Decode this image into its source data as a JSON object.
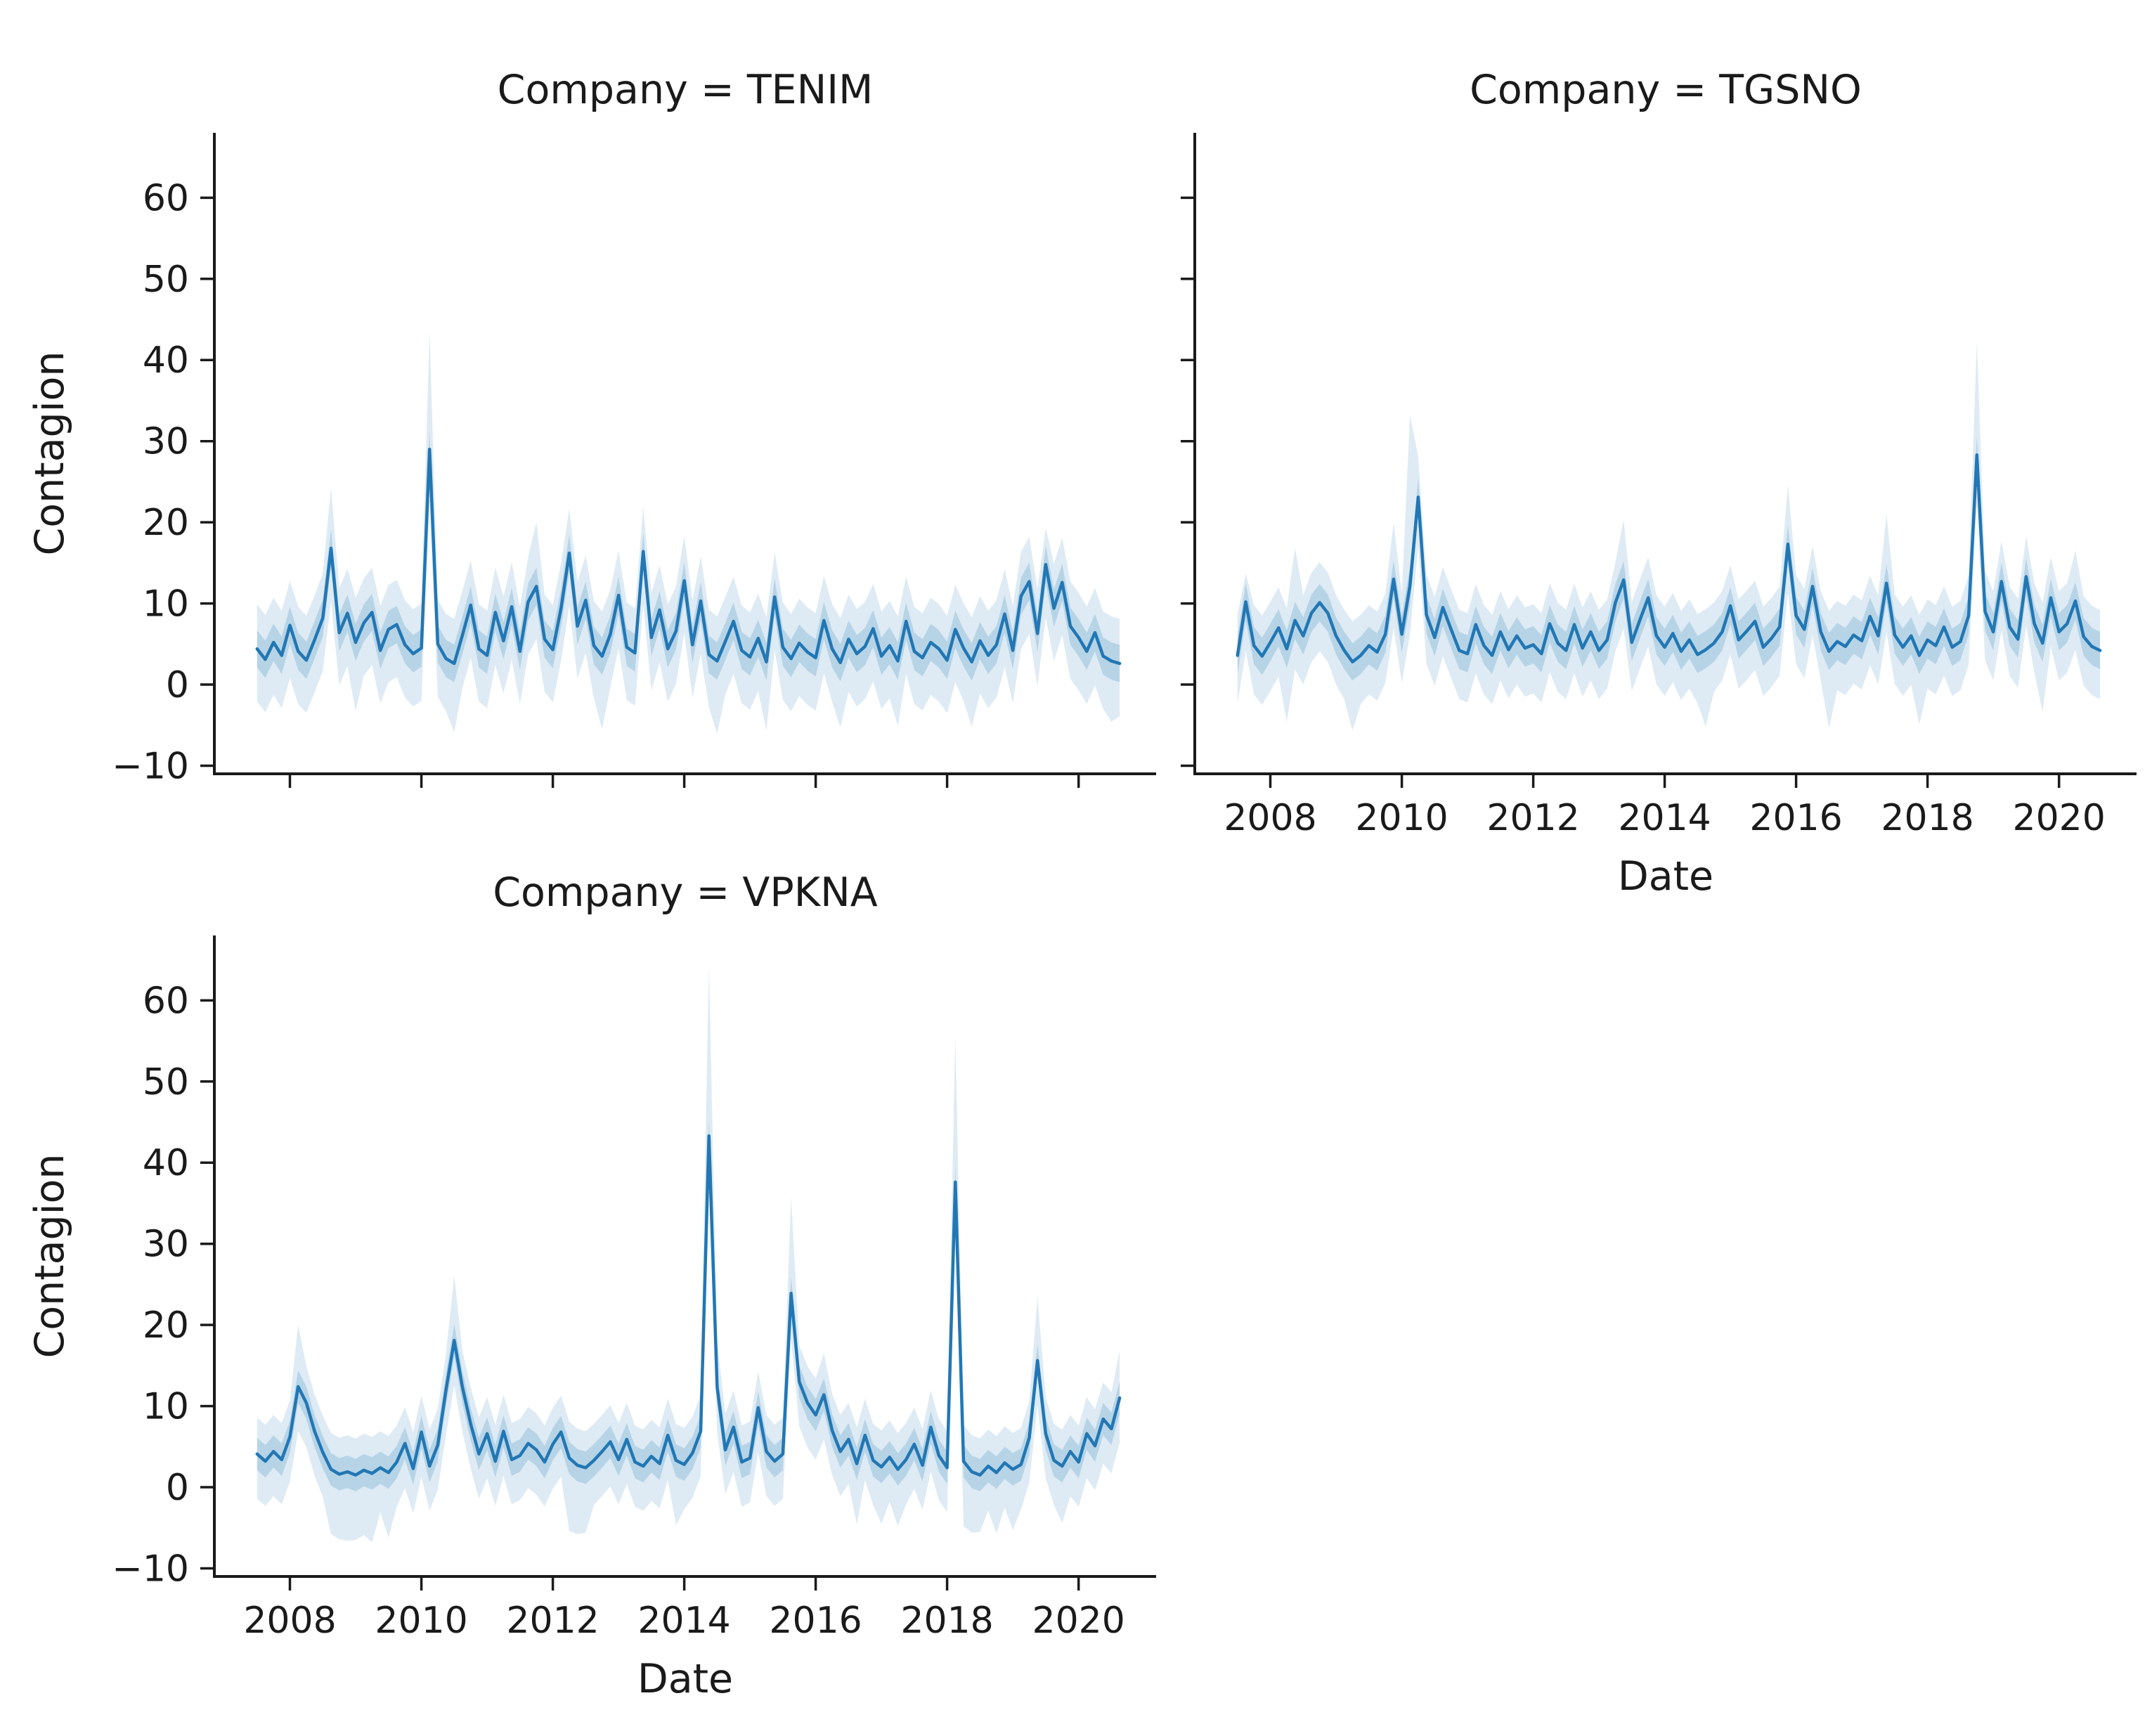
{
  "figure": {
    "background": "#ffffff"
  },
  "chart_data": {
    "type": "line",
    "facet_by": "Company",
    "shared": {
      "xlabel": "Date",
      "ylabel": "Contagion",
      "x_ticks": [
        2008,
        2010,
        2012,
        2014,
        2016,
        2018,
        2020
      ],
      "x_tick_labels": [
        "2008",
        "2010",
        "2012",
        "2014",
        "2016",
        "2018",
        "2020"
      ],
      "y_ticks": [
        -10,
        0,
        10,
        20,
        30,
        40,
        50,
        60
      ],
      "y_tick_labels": [
        "−10",
        "0",
        "10",
        "20",
        "30",
        "40",
        "50",
        "60"
      ],
      "xlim": [
        2006.85,
        2021.18
      ],
      "ylim": [
        -11,
        68
      ],
      "x_start": 2007.5,
      "x_step": 0.125,
      "x_unit": "year",
      "line_color": "#2277b4",
      "band_color": "#1f77b4",
      "band_opacity": 0.15,
      "inner_band_opacity": 0.2,
      "axis_color": "#1a1a1a",
      "text_color": "#1a1a1a",
      "grid": false,
      "legend": "none"
    },
    "facets": [
      {
        "company": "TENIM",
        "title": "Company = TENIM",
        "show_x_tick_labels": false,
        "show_y_tick_labels": true,
        "show_xlabel": false,
        "show_ylabel": true,
        "inner_band_halfwidth": 2.3,
        "band_up_default": 5.5,
        "band_down_default": 6.5,
        "band_up_overrides": {
          "9": 7.5,
          "21": 14.5,
          "34": 7.9,
          "96": 4.5
        },
        "band_down_overrides": {
          "12": 8.5,
          "24": 8.5,
          "42": 9,
          "56": 9,
          "62": 8.5,
          "71": 8,
          "78": 8,
          "87": 8,
          "104": 7.5
        },
        "y": [
          4.4,
          3.1,
          5.2,
          3.6,
          7.3,
          4.1,
          3.0,
          5.5,
          8.2,
          16.8,
          6.4,
          8.8,
          5.2,
          7.6,
          8.9,
          4.2,
          6.8,
          7.4,
          4.9,
          3.8,
          4.5,
          29.0,
          5.0,
          3.2,
          2.6,
          6.1,
          9.8,
          4.4,
          3.6,
          8.9,
          5.4,
          9.6,
          4.1,
          10.2,
          12.1,
          5.6,
          4.3,
          9.4,
          16.2,
          7.2,
          10.4,
          4.8,
          3.5,
          6.2,
          11.0,
          4.6,
          3.9,
          16.4,
          5.8,
          9.2,
          4.4,
          6.6,
          12.8,
          4.9,
          10.3,
          3.7,
          2.9,
          5.3,
          7.8,
          4.2,
          3.4,
          5.7,
          2.8,
          10.8,
          4.6,
          3.2,
          5.1,
          4.0,
          3.3,
          7.9,
          4.4,
          2.7,
          5.6,
          3.8,
          4.7,
          6.9,
          3.5,
          4.8,
          2.9,
          7.8,
          4.1,
          3.3,
          5.2,
          4.4,
          3.0,
          6.8,
          4.5,
          2.8,
          5.4,
          3.6,
          4.9,
          8.7,
          4.2,
          10.9,
          12.7,
          6.3,
          14.8,
          9.4,
          12.6,
          7.2,
          5.8,
          4.1,
          6.4,
          3.5,
          2.9,
          2.6
        ]
      },
      {
        "company": "TGSNO",
        "title": "Company = TGSNO",
        "show_x_tick_labels": true,
        "show_y_tick_labels": false,
        "show_xlabel": true,
        "show_ylabel": false,
        "inner_band_halfwidth": 2.3,
        "band_up_default": 5.0,
        "band_down_default": 6.0,
        "band_up_overrides": {
          "1": 3.5,
          "7": 9,
          "19": 7,
          "21": 21,
          "22": 5,
          "47": 7.4,
          "67": 7.3,
          "79": 8.5,
          "90": 14,
          "102": 6.2
        },
        "band_down_overrides": {
          "6": 9,
          "14": 8.5,
          "57": 9.5,
          "72": 9.5,
          "83": 8.5,
          "98": 8.5
        },
        "y": [
          3.6,
          10.2,
          4.8,
          3.5,
          5.2,
          7.0,
          4.4,
          7.9,
          6.0,
          8.8,
          10.1,
          8.8,
          6.0,
          4.2,
          2.8,
          3.6,
          4.8,
          4.0,
          6.2,
          13.0,
          6.2,
          12.2,
          23.1,
          8.6,
          5.8,
          9.5,
          6.8,
          4.2,
          3.8,
          7.4,
          4.8,
          3.6,
          6.5,
          4.3,
          6.0,
          4.5,
          4.9,
          3.8,
          7.5,
          5.1,
          4.2,
          7.4,
          4.5,
          6.5,
          4.2,
          5.5,
          10.1,
          12.9,
          5.2,
          8.0,
          10.7,
          6.0,
          4.6,
          6.3,
          4.1,
          5.5,
          3.7,
          4.3,
          5.1,
          6.5,
          9.7,
          5.5,
          6.6,
          7.8,
          4.6,
          5.7,
          7.1,
          17.3,
          8.5,
          6.8,
          12.1,
          6.5,
          4.1,
          5.3,
          4.7,
          6.1,
          5.4,
          8.4,
          6.0,
          12.5,
          6.1,
          4.6,
          6.0,
          3.6,
          5.5,
          4.8,
          7.1,
          4.6,
          5.3,
          8.5,
          28.3,
          9.0,
          6.5,
          12.7,
          7.1,
          5.6,
          13.3,
          7.5,
          5.1,
          10.7,
          6.5,
          7.5,
          10.3,
          5.9,
          4.7,
          4.2
        ]
      },
      {
        "company": "VPKNA",
        "title": "Company = VPKNA",
        "show_x_tick_labels": true,
        "show_y_tick_labels": true,
        "show_xlabel": true,
        "show_ylabel": true,
        "inner_band_halfwidth": 2.0,
        "band_up_default": 4.5,
        "band_down_default": 5.5,
        "band_up_overrides": {
          "5": 7.6,
          "24": 8,
          "55": 21.2,
          "56": 5.7,
          "65": 11.9,
          "69": 5.1,
          "85": 18.1,
          "95": 7.8,
          "105": 5.8
        },
        "band_down_overrides": {
          "9": 8,
          "10": 8,
          "11": 8.5,
          "12": 8,
          "13": 8,
          "14": 8.5,
          "16": 8,
          "38": 9,
          "39": 8.5,
          "40": 8,
          "51": 8,
          "73": 7.5,
          "76": 7,
          "78": 7,
          "86": 8,
          "87": 7.5,
          "88": 7,
          "90": 7.5,
          "92": 7.5,
          "98": 7
        },
        "y": [
          4.1,
          3.2,
          4.4,
          3.4,
          6.2,
          12.4,
          10.4,
          6.9,
          4.3,
          2.2,
          1.6,
          1.9,
          1.5,
          2.1,
          1.7,
          2.4,
          1.8,
          3.1,
          5.4,
          2.3,
          6.8,
          2.6,
          5.2,
          12.0,
          18.1,
          12.3,
          7.8,
          4.1,
          6.6,
          3.2,
          6.9,
          3.4,
          3.9,
          5.4,
          4.6,
          3.1,
          5.3,
          6.8,
          3.6,
          2.7,
          2.4,
          3.3,
          4.4,
          5.6,
          3.4,
          5.9,
          3.1,
          2.6,
          3.8,
          2.9,
          6.4,
          3.3,
          2.8,
          4.2,
          6.9,
          43.3,
          12.3,
          4.6,
          7.4,
          3.1,
          3.6,
          9.8,
          4.4,
          3.2,
          4.1,
          23.9,
          13.0,
          10.4,
          8.9,
          11.4,
          7.0,
          4.4,
          5.9,
          2.9,
          6.4,
          3.3,
          2.5,
          3.7,
          2.2,
          3.4,
          5.3,
          2.7,
          7.4,
          3.9,
          2.4,
          37.6,
          3.2,
          1.9,
          1.5,
          2.6,
          1.8,
          3.0,
          2.2,
          2.8,
          6.1,
          15.6,
          6.6,
          3.3,
          2.6,
          4.4,
          3.1,
          6.6,
          5.1,
          8.4,
          7.2,
          11.0
        ]
      }
    ]
  }
}
